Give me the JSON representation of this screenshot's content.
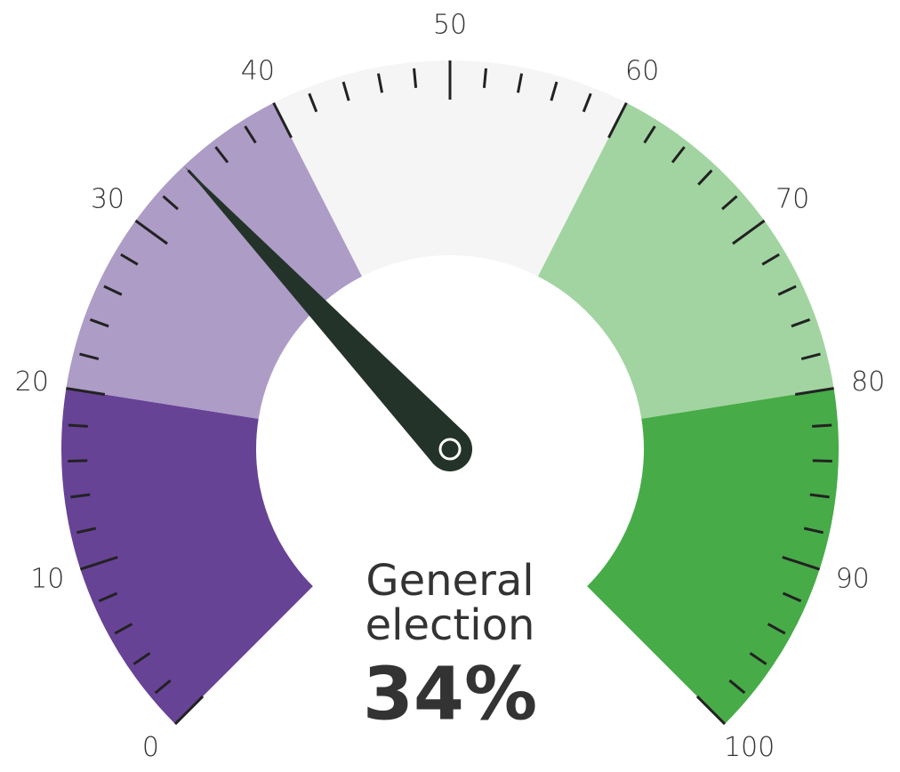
{
  "chart_data": {
    "type": "gauge",
    "label": [
      "General",
      "election"
    ],
    "value": 34,
    "value_label": "34%",
    "range": [
      0,
      100
    ],
    "ticks": [
      0,
      10,
      20,
      30,
      40,
      50,
      60,
      70,
      80,
      90,
      100
    ],
    "minor_ticks": [
      2,
      4,
      6,
      8,
      12,
      14,
      16,
      18,
      22,
      24,
      26,
      28,
      32,
      34,
      36,
      38,
      42,
      44,
      46,
      48,
      52,
      54,
      56,
      58,
      62,
      64,
      66,
      68,
      72,
      74,
      76,
      78,
      82,
      84,
      86,
      88,
      92,
      94,
      96,
      98
    ],
    "bands": [
      {
        "from": 0,
        "to": 20,
        "color": "#674396"
      },
      {
        "from": 20,
        "to": 40,
        "color": "#ad9cc6"
      },
      {
        "from": 40,
        "to": 60,
        "color": "#f5f5f5"
      },
      {
        "from": 60,
        "to": 80,
        "color": "#a2d4a1"
      },
      {
        "from": 80,
        "to": 100,
        "color": "#47ab48"
      }
    ],
    "needle_color": "#233329"
  }
}
